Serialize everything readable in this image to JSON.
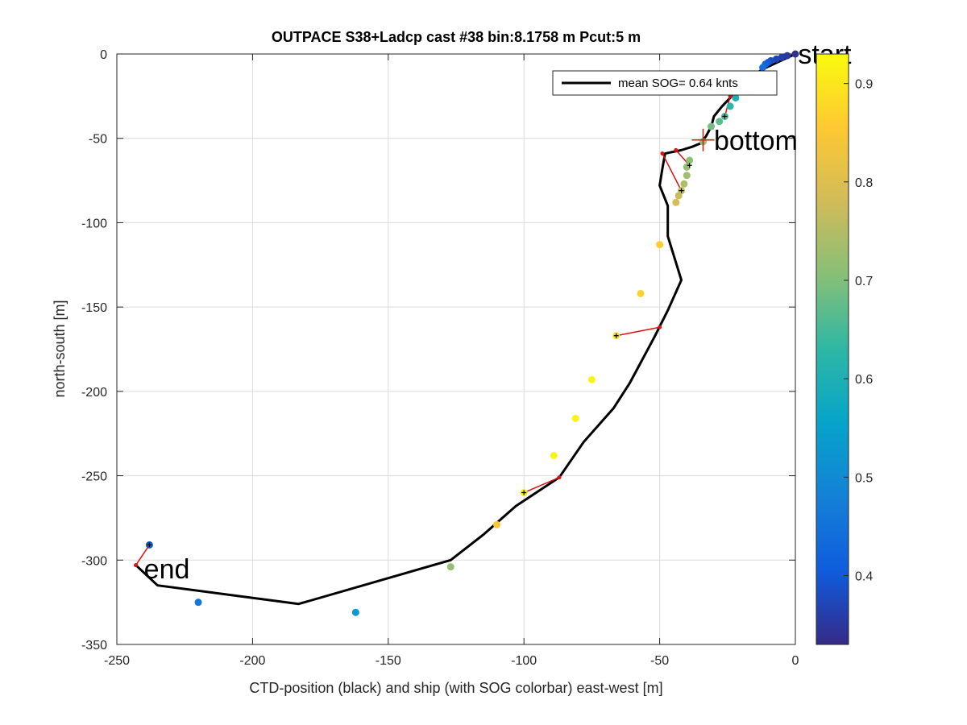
{
  "chart_data": {
    "type": "scatter",
    "title": "OUTPACE S38+Ladcp cast #38 bin:8.1758 m  Pcut:5 m",
    "xlabel": "CTD-position (black) and ship (with SOG colorbar) east-west [m]",
    "ylabel": "north-south [m]",
    "xlim": [
      -250,
      0
    ],
    "ylim": [
      -350,
      0
    ],
    "xticks": [
      -250,
      -200,
      -150,
      -100,
      -50,
      0
    ],
    "yticks": [
      0,
      -50,
      -100,
      -150,
      -200,
      -250,
      -300,
      -350
    ],
    "grid": true,
    "legend": {
      "label": "mean SOG=  0.64 knts",
      "placement": "top-right"
    },
    "colorbar": {
      "range": [
        0.33,
        0.93
      ],
      "ticks": [
        0.4,
        0.5,
        0.6,
        0.7,
        0.8,
        0.9
      ],
      "colormap": [
        "#352a87",
        "#0f5cdd",
        "#1481d6",
        "#06a4ca",
        "#2eb7a4",
        "#87bf77",
        "#d1bb59",
        "#fec832",
        "#f9fb0e"
      ]
    },
    "ctd_track": {
      "color": "#000000",
      "points": [
        [
          0,
          0
        ],
        [
          -4,
          -3
        ],
        [
          -8,
          -6
        ],
        [
          -12,
          -9
        ],
        [
          -15,
          -12
        ],
        [
          -18,
          -15
        ],
        [
          -21,
          -20
        ],
        [
          -24,
          -26
        ],
        [
          -27,
          -31
        ],
        [
          -30,
          -37
        ],
        [
          -31,
          -43
        ],
        [
          -33,
          -49
        ],
        [
          -35,
          -53
        ],
        [
          -38,
          -55
        ],
        [
          -42,
          -57
        ],
        [
          -48,
          -59
        ],
        [
          -49,
          -68
        ],
        [
          -50,
          -78
        ],
        [
          -47,
          -90
        ],
        [
          -47,
          -108
        ],
        [
          -42,
          -134
        ],
        [
          -47,
          -152
        ],
        [
          -52,
          -168
        ],
        [
          -57,
          -183
        ],
        [
          -61,
          -195
        ],
        [
          -67,
          -210
        ],
        [
          -78,
          -230
        ],
        [
          -87,
          -251
        ],
        [
          -103,
          -268
        ],
        [
          -115,
          -285
        ],
        [
          -127,
          -300
        ],
        [
          -183,
          -326
        ],
        [
          -235,
          -315
        ],
        [
          -243,
          -303
        ]
      ]
    },
    "ship_positions": [
      {
        "x": 0,
        "y": 0,
        "sog": 0.34
      },
      {
        "x": -3,
        "y": -1,
        "sog": 0.35
      },
      {
        "x": -5,
        "y": -2,
        "sog": 0.36
      },
      {
        "x": -7,
        "y": -3,
        "sog": 0.37
      },
      {
        "x": -9,
        "y": -4,
        "sog": 0.38
      },
      {
        "x": -10,
        "y": -5,
        "sog": 0.4
      },
      {
        "x": -11,
        "y": -6,
        "sog": 0.42
      },
      {
        "x": -12,
        "y": -8,
        "sog": 0.45
      },
      {
        "x": -22,
        "y": -26,
        "sog": 0.6
      },
      {
        "x": -24,
        "y": -31,
        "sog": 0.63
      },
      {
        "x": -26,
        "y": -37,
        "sog": 0.65
      },
      {
        "x": -28,
        "y": -40,
        "sog": 0.67
      },
      {
        "x": -31,
        "y": -43,
        "sog": 0.69
      },
      {
        "x": -34,
        "y": -52,
        "sog": 0.71
      },
      {
        "x": -39,
        "y": -63,
        "sog": 0.71
      },
      {
        "x": -40,
        "y": -67,
        "sog": 0.72
      },
      {
        "x": -40,
        "y": -72,
        "sog": 0.73
      },
      {
        "x": -41,
        "y": -77,
        "sog": 0.74
      },
      {
        "x": -42,
        "y": -81,
        "sog": 0.76
      },
      {
        "x": -43,
        "y": -84,
        "sog": 0.77
      },
      {
        "x": -44,
        "y": -88,
        "sog": 0.79
      },
      {
        "x": -50,
        "y": -113,
        "sog": 0.86
      },
      {
        "x": -57,
        "y": -142,
        "sog": 0.87
      },
      {
        "x": -66,
        "y": -167,
        "sog": 0.89
      },
      {
        "x": -75,
        "y": -193,
        "sog": 0.92
      },
      {
        "x": -81,
        "y": -216,
        "sog": 0.92
      },
      {
        "x": -89,
        "y": -238,
        "sog": 0.92
      },
      {
        "x": -100,
        "y": -260,
        "sog": 0.91
      },
      {
        "x": -110,
        "y": -279,
        "sog": 0.85
      },
      {
        "x": -127,
        "y": -304,
        "sog": 0.72
      },
      {
        "x": -162,
        "y": -331,
        "sog": 0.53
      },
      {
        "x": -220,
        "y": -325,
        "sog": 0.46
      },
      {
        "x": -238,
        "y": -291,
        "sog": 0.4
      }
    ],
    "connectors": [
      {
        "ship": [
          -100,
          -260
        ],
        "ctd": [
          -87,
          -251
        ]
      },
      {
        "ship": [
          -66,
          -167
        ],
        "ctd": [
          -50,
          -162
        ]
      },
      {
        "ship": [
          -42,
          -81
        ],
        "ctd": [
          -49,
          -59
        ]
      },
      {
        "ship": [
          -39,
          -66
        ],
        "ctd": [
          -44,
          -57
        ]
      },
      {
        "ship": [
          -26,
          -37
        ],
        "ctd": [
          -24,
          -25
        ]
      },
      {
        "ship": [
          -238,
          -291
        ],
        "ctd": [
          -243,
          -303
        ]
      }
    ],
    "annotations": [
      {
        "text": "start",
        "x": 1,
        "y": 0
      },
      {
        "text": "bottom",
        "x": -30,
        "y": -51
      },
      {
        "text": "end",
        "x": -240,
        "y": -305
      }
    ],
    "bottom_marker": {
      "x": -34,
      "y": -51
    }
  }
}
